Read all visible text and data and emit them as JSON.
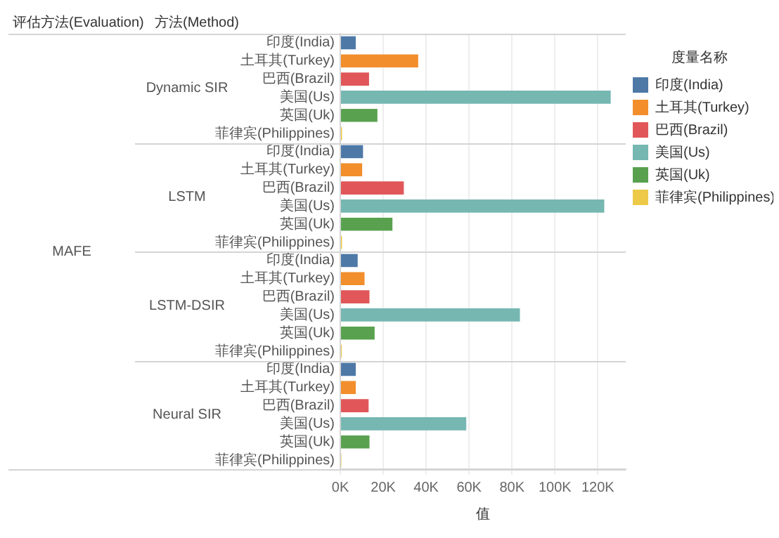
{
  "chart_data": {
    "type": "bar",
    "orientation": "horizontal",
    "categories": [
      "印度(India)",
      "土耳其(Turkey)",
      "巴西(Brazil)",
      "美国(Us)",
      "英国(Uk)",
      "菲律宾(Philippines)",
      "印度(India)",
      "土耳其(Turkey)",
      "巴西(Brazil)",
      "美国(Us)",
      "英国(Uk)",
      "菲律宾(Philippines)",
      "印度(India)",
      "土耳其(Turkey)",
      "巴西(Brazil)",
      "美国(Us)",
      "英国(Uk)",
      "菲律宾(Philippines)",
      "印度(India)",
      "土耳其(Turkey)",
      "巴西(Brazil)",
      "美国(Us)",
      "英国(Uk)",
      "菲律宾(Philippines)"
    ],
    "series": [
      {
        "name": "印度(India)",
        "color": "#4e79a7",
        "values": [
          7200,
          null,
          null,
          null,
          null,
          null,
          10600,
          null,
          null,
          null,
          null,
          null,
          8100,
          null,
          null,
          null,
          null,
          null,
          7200,
          null,
          null,
          null,
          null,
          null
        ]
      },
      {
        "name": "土耳其(Turkey)",
        "color": "#f28e2b",
        "values": [
          null,
          36300,
          null,
          null,
          null,
          null,
          null,
          10200,
          null,
          null,
          null,
          null,
          null,
          11300,
          null,
          null,
          null,
          null,
          null,
          7200,
          null,
          null,
          null,
          null
        ]
      },
      {
        "name": "巴西(Brazil)",
        "color": "#e15759",
        "values": [
          null,
          null,
          13400,
          null,
          null,
          null,
          null,
          null,
          29600,
          null,
          null,
          null,
          null,
          null,
          13600,
          null,
          null,
          null,
          null,
          null,
          13200,
          null,
          null,
          null
        ]
      },
      {
        "name": "美国(Us)",
        "color": "#76b7b2",
        "values": [
          null,
          null,
          null,
          126000,
          null,
          null,
          null,
          null,
          null,
          123000,
          null,
          null,
          null,
          null,
          null,
          83700,
          null,
          null,
          null,
          null,
          null,
          58700,
          null,
          null
        ]
      },
      {
        "name": "英国(Uk)",
        "color": "#59a14f",
        "values": [
          null,
          null,
          null,
          null,
          17300,
          null,
          null,
          null,
          null,
          null,
          24300,
          null,
          null,
          null,
          null,
          null,
          16000,
          null,
          null,
          null,
          null,
          null,
          13600,
          null
        ]
      },
      {
        "name": "菲律宾(Philippines)",
        "color": "#edc948",
        "values": [
          null,
          null,
          null,
          null,
          null,
          800,
          null,
          null,
          null,
          null,
          null,
          800,
          null,
          null,
          null,
          null,
          null,
          700,
          null,
          null,
          null,
          null,
          null,
          500
        ]
      }
    ],
    "xlabel": "值",
    "legend_title": "度量名称",
    "legend": "right",
    "grid": "x",
    "xlim": [
      0,
      133000
    ],
    "xticks": [
      {
        "value": 0,
        "label": "0K"
      },
      {
        "value": 20000,
        "label": "20K"
      },
      {
        "value": 40000,
        "label": "40K"
      },
      {
        "value": 60000,
        "label": "60K"
      },
      {
        "value": 80000,
        "label": "80K"
      },
      {
        "value": 100000,
        "label": "100K"
      },
      {
        "value": 120000,
        "label": "120K"
      }
    ],
    "annotations": [
      "评估方法(Evaluation)",
      "方法(Method)",
      "MAFE",
      "Dynamic SIR",
      "LSTM",
      "LSTM-DSIR",
      "Neural SIR"
    ]
  }
}
